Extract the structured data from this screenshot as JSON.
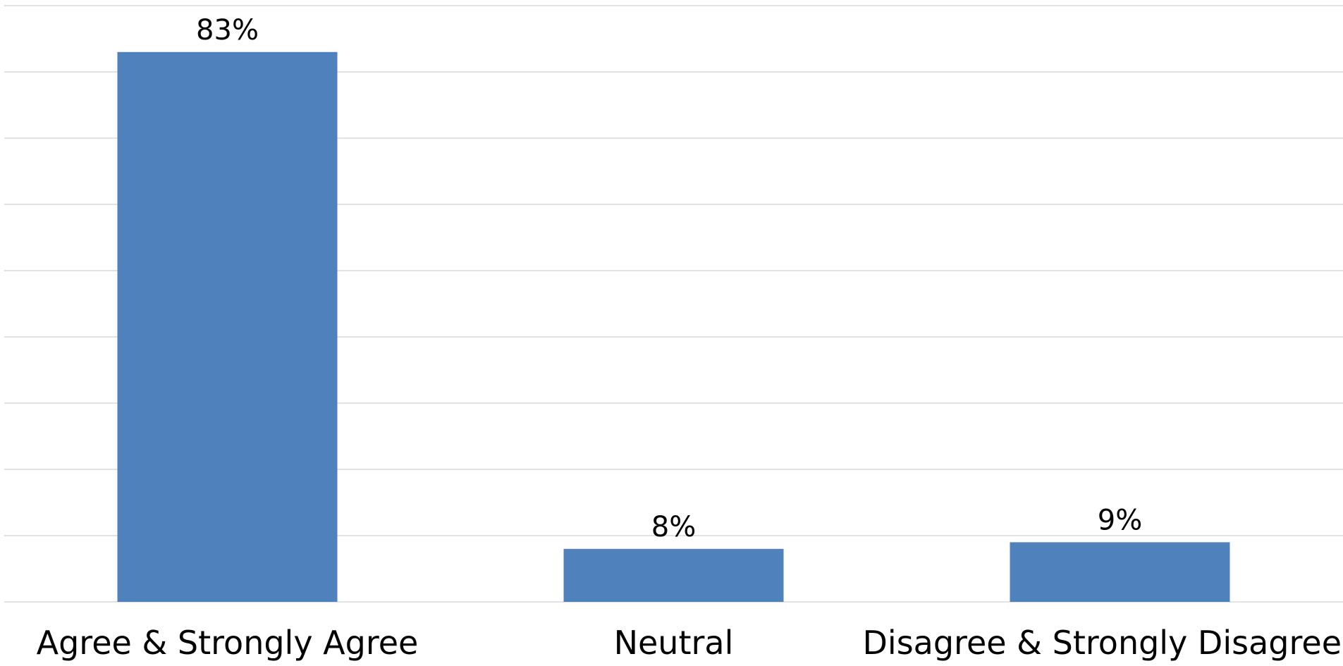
{
  "chart_data": {
    "type": "bar",
    "categories": [
      "Agree & Strongly Agree",
      "Neutral",
      "Disagree & Strongly Disagree"
    ],
    "values": [
      83,
      8,
      9
    ],
    "data_labels": [
      "83%",
      "8%",
      "9%"
    ],
    "ylim": [
      0,
      90
    ],
    "gridline_step": 10,
    "grid": true,
    "legend": "none",
    "bar_color": "#4f81bd",
    "grid_color": "#d9d9d9"
  }
}
